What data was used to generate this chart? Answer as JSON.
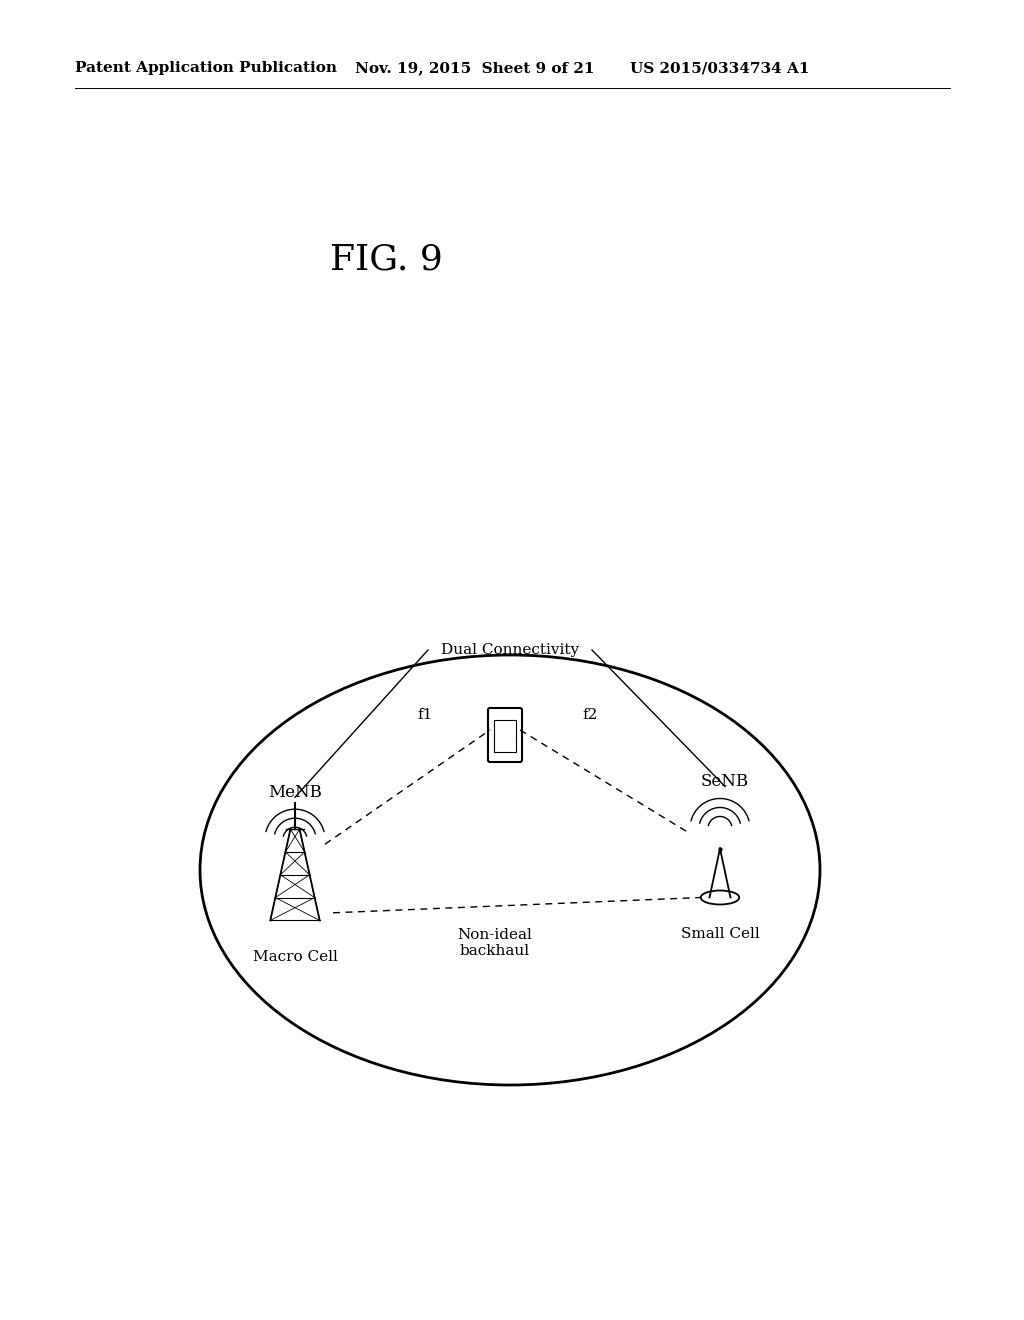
{
  "bg_color": "#ffffff",
  "header_left": "Patent Application Publication",
  "header_mid": "Nov. 19, 2015  Sheet 9 of 21",
  "header_right": "US 2015/0334734 A1",
  "fig_label": "FIG. 9",
  "menb_label": "MeNB",
  "senb_label": "SeNB",
  "macro_label": "Macro Cell",
  "small_label": "Small Cell",
  "backhaul_label": "Non-ideal\nbackhaul",
  "f1_label": "f1",
  "f2_label": "f2",
  "dual_connectivity_label": "Dual Connectivity",
  "text_color": "#000000",
  "line_color": "#000000",
  "fontsize_header": 11,
  "fontsize_fig": 22,
  "fontsize_labels": 11
}
